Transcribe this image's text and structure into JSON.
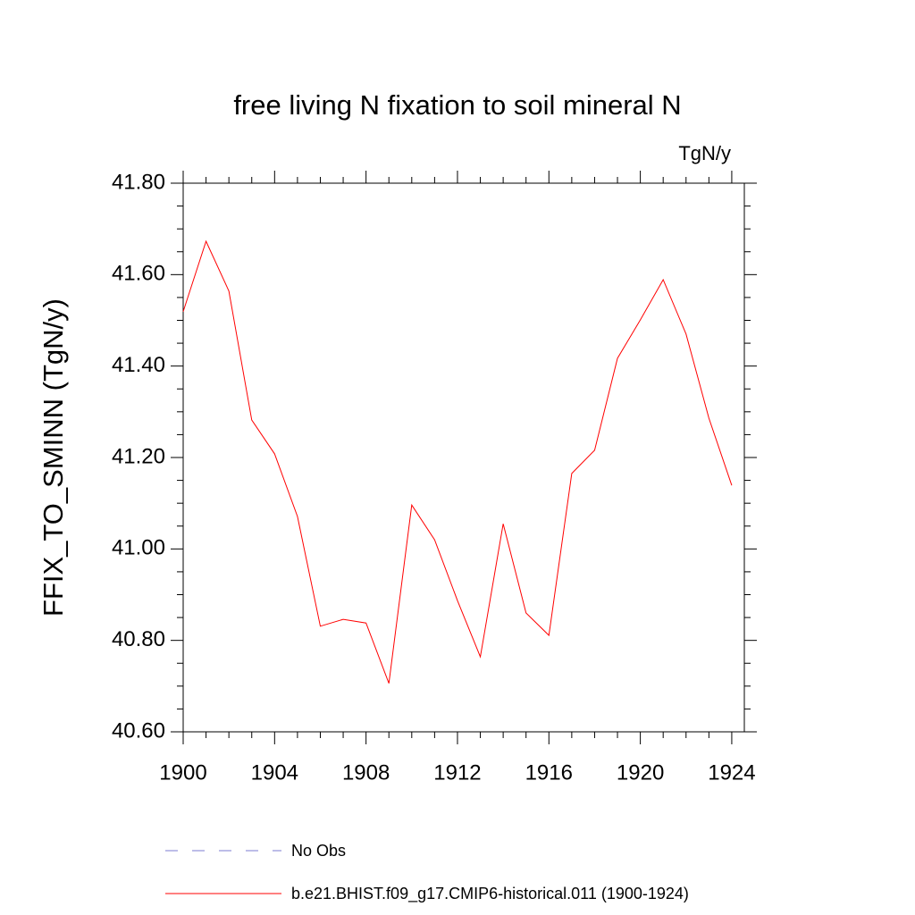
{
  "chart_data": {
    "type": "line",
    "title": "free living N fixation to soil mineral N",
    "units": "TgN/y",
    "y_label": "FFIX_TO_SMINN  (TgN/y)",
    "x": [
      1900,
      1901,
      1902,
      1903,
      1904,
      1905,
      1906,
      1907,
      1908,
      1909,
      1910,
      1911,
      1912,
      1913,
      1914,
      1915,
      1916,
      1917,
      1918,
      1919,
      1920,
      1921,
      1922,
      1923,
      1924
    ],
    "series": [
      {
        "name": "No Obs",
        "color": "#7b7bd0",
        "dashed": true,
        "values": [
          null,
          null,
          null,
          null,
          null,
          null,
          null,
          null,
          null,
          null,
          null,
          null,
          null,
          null,
          null,
          null,
          null,
          null,
          null,
          null,
          null,
          null,
          null,
          null,
          null
        ]
      },
      {
        "name": "b.e21.BHIST.f09_g17.CMIP6-historical.011 (1900-1924)",
        "color": "#ff0000",
        "dashed": false,
        "values": [
          41.519,
          41.673,
          41.564,
          41.282,
          41.208,
          41.071,
          40.831,
          40.846,
          40.838,
          40.706,
          41.096,
          41.02,
          40.887,
          40.764,
          41.055,
          40.86,
          40.811,
          41.165,
          41.216,
          41.417,
          41.501,
          41.589,
          41.47,
          41.286,
          41.139
        ]
      }
    ],
    "xlim": [
      1900,
      1924.55
    ],
    "ylim": [
      40.6,
      41.8
    ],
    "xticks": [
      1900,
      1904,
      1908,
      1912,
      1916,
      1920,
      1924
    ],
    "yticks": [
      {
        "value": 40.6,
        "label": "40.60"
      },
      {
        "value": 40.8,
        "label": "40.80"
      },
      {
        "value": 41.0,
        "label": "41.00"
      },
      {
        "value": 41.2,
        "label": "41.20"
      },
      {
        "value": 41.4,
        "label": "41.40"
      },
      {
        "value": 41.6,
        "label": "41.60"
      },
      {
        "value": 41.8,
        "label": "41.80"
      }
    ],
    "xminorticks": [
      1901,
      1902,
      1903,
      1905,
      1906,
      1907,
      1909,
      1910,
      1911,
      1913,
      1914,
      1915,
      1917,
      1918,
      1919,
      1921,
      1922,
      1923
    ],
    "yminorticks": [
      40.65,
      40.7,
      40.75,
      40.85,
      40.9,
      40.95,
      41.05,
      41.1,
      41.15,
      41.25,
      41.3,
      41.35,
      41.45,
      41.5,
      41.55,
      41.65,
      41.7,
      41.75
    ]
  }
}
